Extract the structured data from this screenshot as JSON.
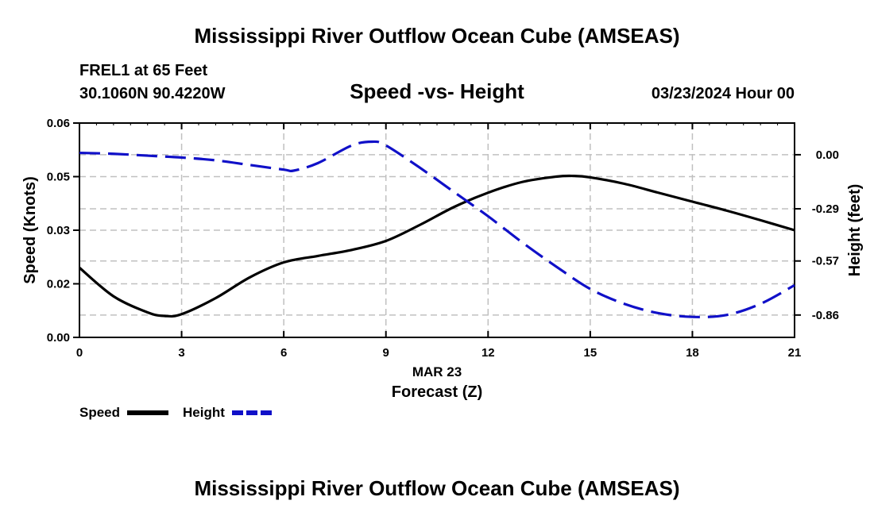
{
  "chart_data": {
    "type": "line",
    "title": "Mississippi River Outflow Ocean Cube (AMSEAS)",
    "footer_title": "Mississippi River Outflow Ocean Cube (AMSEAS)",
    "station": "FREL1 at 65 Feet",
    "location": "30.1060N  90.4220W",
    "subtitle": "Speed -vs- Height",
    "timestamp": "03/23/2024 Hour 00",
    "xlabel": "Forecast (Z)",
    "xdate": "MAR 23",
    "ylabel_left": "Speed (Knots)",
    "ylabel_right": "Height (feet)",
    "x_ticks": [
      "0",
      "3",
      "6",
      "9",
      "12",
      "15",
      "18",
      "21"
    ],
    "x_tick_values": [
      0,
      3,
      6,
      9,
      12,
      15,
      18,
      21
    ],
    "xlim": [
      0,
      21
    ],
    "y_left_ticks": [
      "0.00",
      "0.02",
      "0.03",
      "0.05",
      "0.06"
    ],
    "y_left_tick_values": [
      0.0,
      0.015,
      0.03,
      0.045,
      0.06
    ],
    "ylim_left": [
      0,
      0.06
    ],
    "y_right_ticks": [
      "0.00",
      "-0.29",
      "-0.57",
      "-0.86"
    ],
    "y_right_tick_values": [
      0.0,
      -0.29,
      -0.57,
      -0.86
    ],
    "ylim_right": [
      -0.98,
      0.17
    ],
    "grid": true,
    "series": [
      {
        "name": "Speed",
        "axis": "left",
        "color": "#000000",
        "dash": "solid",
        "x": [
          0,
          1,
          2,
          2.5,
          3,
          4,
          5,
          6,
          7,
          8,
          9,
          10,
          11,
          12,
          13,
          14,
          14.5,
          15,
          16,
          17,
          18,
          19,
          20,
          21
        ],
        "values": [
          0.0195,
          0.0115,
          0.007,
          0.006,
          0.0065,
          0.011,
          0.0168,
          0.021,
          0.0228,
          0.0245,
          0.027,
          0.0315,
          0.0365,
          0.0405,
          0.0435,
          0.045,
          0.0452,
          0.0448,
          0.043,
          0.0405,
          0.038,
          0.0355,
          0.0328,
          0.03
        ]
      },
      {
        "name": "Height",
        "axis": "right",
        "color": "#1010c8",
        "dash": "dashed",
        "x": [
          0,
          1,
          2,
          3,
          4,
          5,
          6,
          6.3,
          7,
          8,
          8.6,
          9,
          10,
          11,
          12,
          13,
          14,
          15,
          16,
          17,
          18,
          19,
          20,
          21
        ],
        "values": [
          0.01,
          0.005,
          -0.005,
          -0.015,
          -0.03,
          -0.055,
          -0.08,
          -0.085,
          -0.045,
          0.05,
          0.07,
          0.05,
          -0.07,
          -0.2,
          -0.33,
          -0.47,
          -0.6,
          -0.72,
          -0.8,
          -0.85,
          -0.87,
          -0.86,
          -0.8,
          -0.7
        ]
      }
    ],
    "legend": [
      "Speed",
      "Height"
    ],
    "legend_position": "bottom-left"
  }
}
